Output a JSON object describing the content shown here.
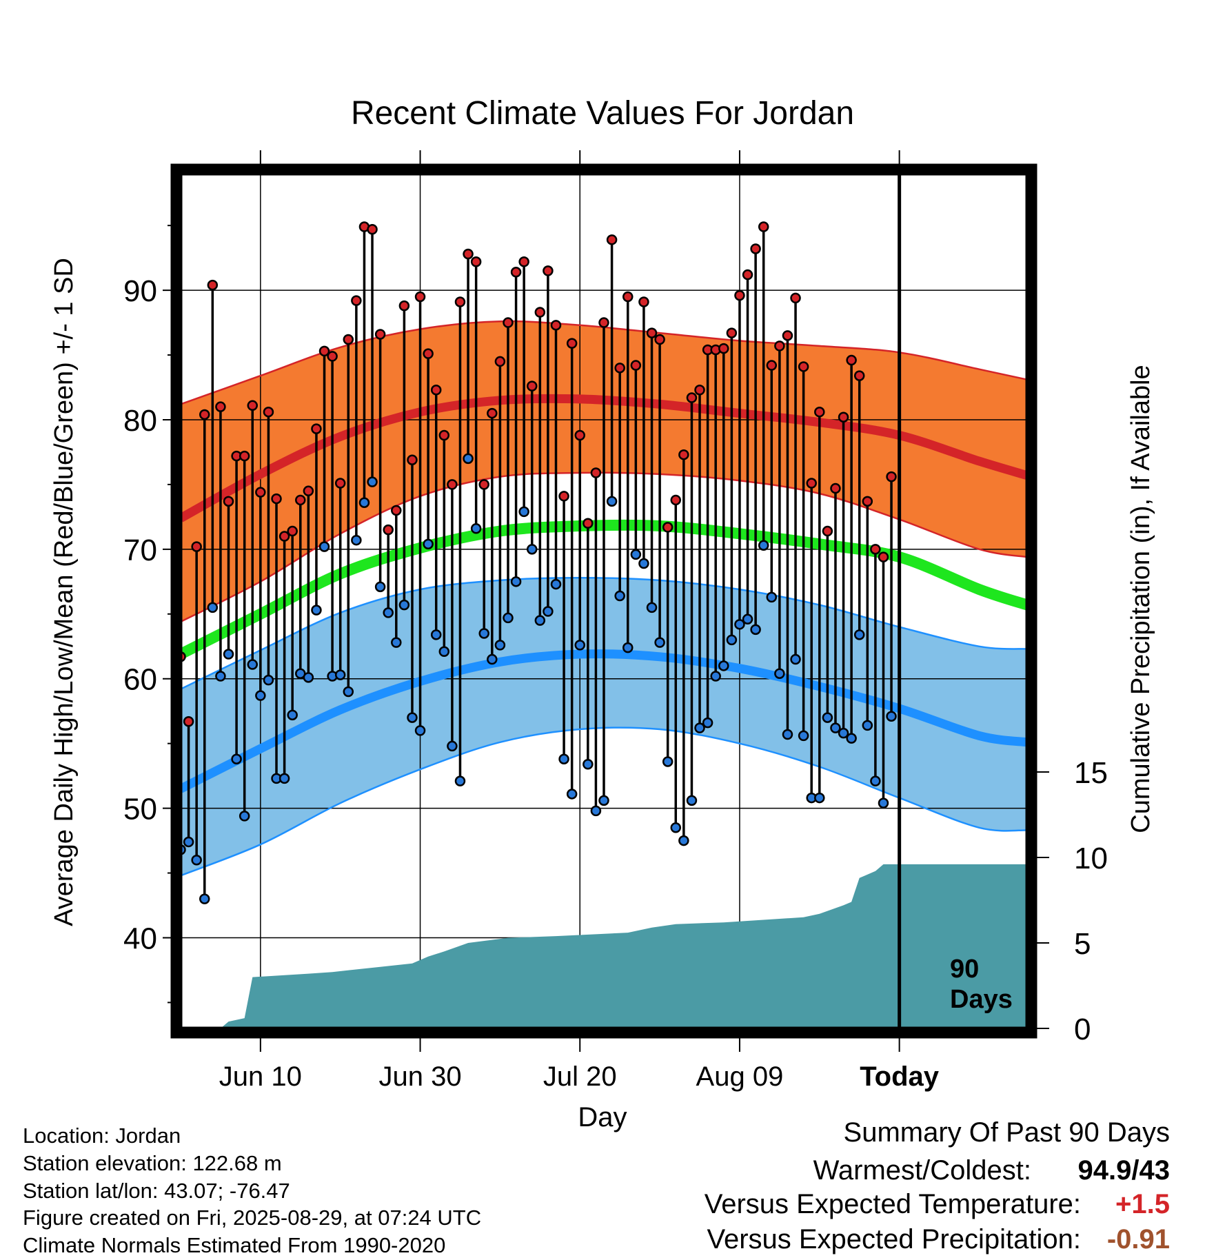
{
  "chart_data": {
    "type": "line",
    "title": "Recent Climate Values For Jordan",
    "xlabel": "Day",
    "ylabel": "Average Daily High/Low/Mean (Red/Blue/Green) +/- 1 SD",
    "y2label": "Cumulative Precipitation (in), If Available",
    "xlim": [
      "2025-05-31",
      "2025-09-14"
    ],
    "ylim": [
      33,
      99
    ],
    "y2lim": [
      0,
      50
    ],
    "x_ticks": [
      {
        "date": "2025-06-10",
        "label": "Jun 10"
      },
      {
        "date": "2025-06-30",
        "label": "Jun 30"
      },
      {
        "date": "2025-07-20",
        "label": "Jul 20"
      },
      {
        "date": "2025-08-09",
        "label": "Aug 09"
      },
      {
        "date": "2025-08-29",
        "label": "Today"
      }
    ],
    "y_ticks": [
      40,
      50,
      60,
      70,
      80,
      90
    ],
    "y2_ticks": [
      0,
      5,
      10,
      15
    ],
    "today_marker": {
      "date": "2025-08-29",
      "label_line1": "90",
      "label_line2": "Days"
    },
    "grid": true,
    "colors": {
      "high_band": "#f47a30",
      "high_line": "#d42428",
      "high_edge": "#d42428",
      "low_band": "#82c0e8",
      "low_line": "#1e90ff",
      "low_edge": "#1e90ff",
      "mean_line": "#1ee61e",
      "precip": "#4b9ba5",
      "high_point": "#d42428",
      "low_point": "#2878d8"
    },
    "normals": {
      "dates": [
        "2025-05-31",
        "2025-06-10",
        "2025-06-20",
        "2025-06-30",
        "2025-07-10",
        "2025-07-20",
        "2025-07-30",
        "2025-08-09",
        "2025-08-19",
        "2025-08-29",
        "2025-09-08",
        "2025-09-14"
      ],
      "high_mean": [
        72.4,
        75.8,
        78.7,
        80.6,
        81.5,
        81.6,
        81.2,
        80.5,
        79.8,
        78.8,
        76.8,
        75.7
      ],
      "high_upper": [
        81.2,
        83.4,
        85.6,
        87.0,
        87.6,
        87.3,
        86.7,
        86.1,
        85.7,
        85.2,
        83.9,
        83.1
      ],
      "high_lower": [
        64.4,
        67.5,
        71.2,
        74.1,
        75.6,
        75.9,
        75.8,
        75.3,
        74.3,
        72.3,
        70.0,
        69.4
      ],
      "mean": [
        61.9,
        65.0,
        68.1,
        70.1,
        71.4,
        71.8,
        71.8,
        71.2,
        70.4,
        69.4,
        66.9,
        65.7
      ],
      "low_mean": [
        51.5,
        54.6,
        57.6,
        59.8,
        61.3,
        61.9,
        61.7,
        60.8,
        59.4,
        57.7,
        55.6,
        55.1
      ],
      "low_upper": [
        59.2,
        62.2,
        65.1,
        66.9,
        67.6,
        67.8,
        67.6,
        66.9,
        65.7,
        64.0,
        62.5,
        62.3
      ],
      "low_lower": [
        44.8,
        47.2,
        50.4,
        53.0,
        55.1,
        56.1,
        56.1,
        55.0,
        53.2,
        50.8,
        48.5,
        48.3
      ]
    },
    "observations": [
      {
        "date": "2025-05-31",
        "high": 61.7,
        "low": 46.8
      },
      {
        "date": "2025-06-01",
        "high": 56.7,
        "low": 47.4
      },
      {
        "date": "2025-06-02",
        "high": 70.2,
        "low": 46.0
      },
      {
        "date": "2025-06-03",
        "high": 80.4,
        "low": 43.0
      },
      {
        "date": "2025-06-04",
        "high": 90.4,
        "low": 65.5
      },
      {
        "date": "2025-06-05",
        "high": 81.0,
        "low": 60.2
      },
      {
        "date": "2025-06-06",
        "high": 73.7,
        "low": 61.9
      },
      {
        "date": "2025-06-07",
        "high": 77.2,
        "low": 53.8
      },
      {
        "date": "2025-06-08",
        "high": 77.2,
        "low": 49.4
      },
      {
        "date": "2025-06-09",
        "high": 81.1,
        "low": 61.1
      },
      {
        "date": "2025-06-10",
        "high": 74.4,
        "low": 58.7
      },
      {
        "date": "2025-06-11",
        "high": 80.6,
        "low": 59.9
      },
      {
        "date": "2025-06-12",
        "high": 73.9,
        "low": 52.3
      },
      {
        "date": "2025-06-13",
        "high": 71.0,
        "low": 52.3
      },
      {
        "date": "2025-06-14",
        "high": 71.4,
        "low": 57.2
      },
      {
        "date": "2025-06-15",
        "high": 73.8,
        "low": 60.4
      },
      {
        "date": "2025-06-16",
        "high": 74.5,
        "low": 60.1
      },
      {
        "date": "2025-06-17",
        "high": 79.3,
        "low": 65.3
      },
      {
        "date": "2025-06-18",
        "high": 85.3,
        "low": 70.2
      },
      {
        "date": "2025-06-19",
        "high": 84.9,
        "low": 60.2
      },
      {
        "date": "2025-06-20",
        "high": 75.1,
        "low": 60.3
      },
      {
        "date": "2025-06-21",
        "high": 86.2,
        "low": 59.0
      },
      {
        "date": "2025-06-22",
        "high": 89.2,
        "low": 70.7
      },
      {
        "date": "2025-06-23",
        "high": 94.9,
        "low": 73.6
      },
      {
        "date": "2025-06-24",
        "high": 94.7,
        "low": 75.2
      },
      {
        "date": "2025-06-25",
        "high": 86.6,
        "low": 67.1
      },
      {
        "date": "2025-06-26",
        "high": 71.5,
        "low": 65.1
      },
      {
        "date": "2025-06-27",
        "high": 73.0,
        "low": 62.8
      },
      {
        "date": "2025-06-28",
        "high": 88.8,
        "low": 65.7
      },
      {
        "date": "2025-06-29",
        "high": 76.9,
        "low": 57.0
      },
      {
        "date": "2025-06-30",
        "high": 89.5,
        "low": 56.0
      },
      {
        "date": "2025-07-01",
        "high": 85.1,
        "low": 70.4
      },
      {
        "date": "2025-07-02",
        "high": 82.3,
        "low": 63.4
      },
      {
        "date": "2025-07-03",
        "high": 78.8,
        "low": 62.1
      },
      {
        "date": "2025-07-04",
        "high": 75.0,
        "low": 54.8
      },
      {
        "date": "2025-07-05",
        "high": 89.1,
        "low": 52.1
      },
      {
        "date": "2025-07-06",
        "high": 92.8,
        "low": 77.0
      },
      {
        "date": "2025-07-07",
        "high": 92.2,
        "low": 71.6
      },
      {
        "date": "2025-07-08",
        "high": 75.0,
        "low": 63.5
      },
      {
        "date": "2025-07-09",
        "high": 80.5,
        "low": 61.5
      },
      {
        "date": "2025-07-10",
        "high": 84.5,
        "low": 62.6
      },
      {
        "date": "2025-07-11",
        "high": 87.5,
        "low": 64.7
      },
      {
        "date": "2025-07-12",
        "high": 91.4,
        "low": 67.5
      },
      {
        "date": "2025-07-13",
        "high": 92.2,
        "low": 72.9
      },
      {
        "date": "2025-07-14",
        "high": 82.6,
        "low": 70.0
      },
      {
        "date": "2025-07-15",
        "high": 88.3,
        "low": 64.5
      },
      {
        "date": "2025-07-16",
        "high": 91.5,
        "low": 65.2
      },
      {
        "date": "2025-07-17",
        "high": 87.3,
        "low": 67.3
      },
      {
        "date": "2025-07-18",
        "high": 74.1,
        "low": 53.8
      },
      {
        "date": "2025-07-19",
        "high": 85.9,
        "low": 51.1
      },
      {
        "date": "2025-07-20",
        "high": 78.8,
        "low": 62.6
      },
      {
        "date": "2025-07-21",
        "high": 72.0,
        "low": 53.4
      },
      {
        "date": "2025-07-22",
        "high": 75.9,
        "low": 49.8
      },
      {
        "date": "2025-07-23",
        "high": 87.5,
        "low": 50.6
      },
      {
        "date": "2025-07-24",
        "high": 93.9,
        "low": 73.7
      },
      {
        "date": "2025-07-25",
        "high": 84.0,
        "low": 66.4
      },
      {
        "date": "2025-07-26",
        "high": 89.5,
        "low": 62.4
      },
      {
        "date": "2025-07-27",
        "high": 84.2,
        "low": 69.6
      },
      {
        "date": "2025-07-28",
        "high": 89.1,
        "low": 68.9
      },
      {
        "date": "2025-07-29",
        "high": 86.7,
        "low": 65.5
      },
      {
        "date": "2025-07-30",
        "high": 86.2,
        "low": 62.8
      },
      {
        "date": "2025-07-31",
        "high": 71.7,
        "low": 53.6
      },
      {
        "date": "2025-08-01",
        "high": 73.8,
        "low": 48.5
      },
      {
        "date": "2025-08-02",
        "high": 77.3,
        "low": 47.5
      },
      {
        "date": "2025-08-03",
        "high": 81.7,
        "low": 50.6
      },
      {
        "date": "2025-08-04",
        "high": 82.3,
        "low": 56.2
      },
      {
        "date": "2025-08-05",
        "high": 85.4,
        "low": 56.6
      },
      {
        "date": "2025-08-06",
        "high": 85.4,
        "low": 60.2
      },
      {
        "date": "2025-08-07",
        "high": 85.5,
        "low": 61.0
      },
      {
        "date": "2025-08-08",
        "high": 86.7,
        "low": 63.0
      },
      {
        "date": "2025-08-09",
        "high": 89.6,
        "low": 64.2
      },
      {
        "date": "2025-08-10",
        "high": 91.2,
        "low": 64.6
      },
      {
        "date": "2025-08-11",
        "high": 93.2,
        "low": 63.8
      },
      {
        "date": "2025-08-12",
        "high": 94.9,
        "low": 70.3
      },
      {
        "date": "2025-08-13",
        "high": 84.2,
        "low": 66.3
      },
      {
        "date": "2025-08-14",
        "high": 85.7,
        "low": 60.4
      },
      {
        "date": "2025-08-15",
        "high": 86.5,
        "low": 55.7
      },
      {
        "date": "2025-08-16",
        "high": 89.4,
        "low": 61.5
      },
      {
        "date": "2025-08-17",
        "high": 84.1,
        "low": 55.6
      },
      {
        "date": "2025-08-18",
        "high": 75.1,
        "low": 50.8
      },
      {
        "date": "2025-08-19",
        "high": 80.6,
        "low": 50.8
      },
      {
        "date": "2025-08-20",
        "high": 71.4,
        "low": 57.0
      },
      {
        "date": "2025-08-21",
        "high": 74.7,
        "low": 56.2
      },
      {
        "date": "2025-08-22",
        "high": 80.2,
        "low": 55.8
      },
      {
        "date": "2025-08-23",
        "high": 84.6,
        "low": 55.4
      },
      {
        "date": "2025-08-24",
        "high": 83.4,
        "low": 63.4
      },
      {
        "date": "2025-08-25",
        "high": 73.7,
        "low": 56.4
      },
      {
        "date": "2025-08-26",
        "high": 70.0,
        "low": 52.1
      },
      {
        "date": "2025-08-27",
        "high": 69.4,
        "low": 50.4
      },
      {
        "date": "2025-08-28",
        "high": 75.6,
        "low": 57.1
      }
    ],
    "cumulative_precip": {
      "dates": [
        "2025-05-31",
        "2025-06-05",
        "2025-06-06",
        "2025-06-08",
        "2025-06-09",
        "2025-06-16",
        "2025-06-19",
        "2025-06-25",
        "2025-06-29",
        "2025-07-01",
        "2025-07-03",
        "2025-07-06",
        "2025-07-11",
        "2025-07-17",
        "2025-07-26",
        "2025-07-29",
        "2025-08-01",
        "2025-08-07",
        "2025-08-17",
        "2025-08-19",
        "2025-08-22",
        "2025-08-23",
        "2025-08-24",
        "2025-08-26",
        "2025-08-27",
        "2025-09-14"
      ],
      "values": [
        0.0,
        0.0,
        0.4,
        0.6,
        3.0,
        3.2,
        3.3,
        3.6,
        3.8,
        4.2,
        4.5,
        5.0,
        5.3,
        5.4,
        5.6,
        5.9,
        6.1,
        6.2,
        6.5,
        6.7,
        7.2,
        7.4,
        8.8,
        9.2,
        9.6,
        9.6
      ]
    }
  },
  "info": {
    "location": "Location: Jordan",
    "elevation": "Station elevation: 122.68 m",
    "latlon": "Station lat/lon: 43.07; -76.47",
    "created": "Figure created on Fri, 2025-08-29, at 07:24 UTC",
    "normals": "Climate Normals Estimated From 1990-2020"
  },
  "summary": {
    "title": "Summary Of Past 90 Days",
    "warmest_label": "Warmest/Coldest:",
    "warmest_value": "94.9/43",
    "temp_label": "Versus Expected Temperature:",
    "temp_value": "+1.5",
    "temp_color": "#d42428",
    "precip_label": "Versus Expected Precipitation:",
    "precip_value": "-0.91",
    "precip_color": "#a0522d"
  }
}
